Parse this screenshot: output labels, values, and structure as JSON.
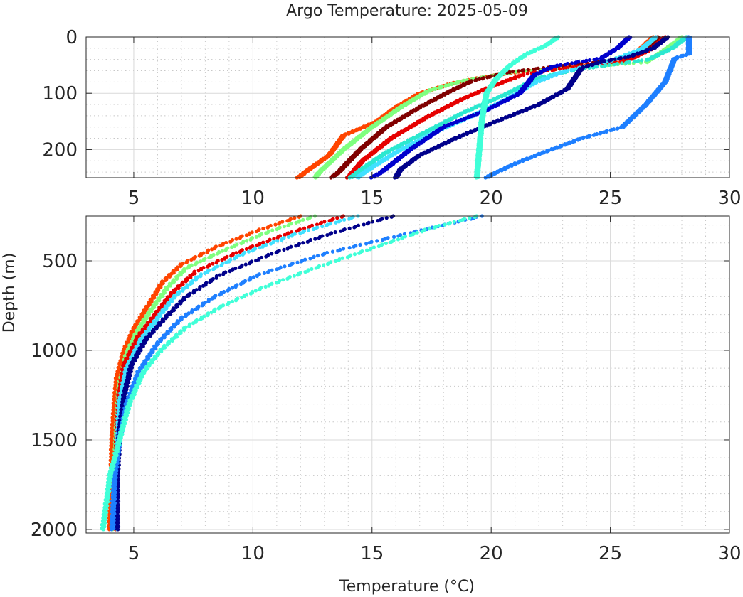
{
  "chart_data": {
    "type": "scatter",
    "title": "Argo Temperature: 2025-05-09",
    "xlabel": "Temperature (°C)",
    "ylabel": "Depth (m)",
    "grid": true,
    "y_reversed": true,
    "panels": [
      {
        "name": "upper",
        "xlim": [
          3,
          30
        ],
        "ylim": [
          0,
          250
        ],
        "xticks": [
          5,
          10,
          15,
          20,
          25,
          30
        ],
        "yticks": [
          0,
          100,
          200
        ],
        "series_points": [
          {
            "color": "#FF4500",
            "points": [
              [
                26.8,
                0
              ],
              [
                26.3,
                20
              ],
              [
                25.6,
                45
              ],
              [
                22.6,
                55
              ],
              [
                21.2,
                62
              ],
              [
                19.8,
                70
              ],
              [
                18.4,
                82
              ],
              [
                17.0,
                100
              ],
              [
                16.0,
                125
              ],
              [
                15.2,
                150
              ],
              [
                13.8,
                175
              ],
              [
                13.2,
                210
              ],
              [
                12.2,
                240
              ],
              [
                11.9,
                250
              ]
            ]
          },
          {
            "color": "#7FFF7F",
            "points": [
              [
                28.0,
                0
              ],
              [
                27.4,
                20
              ],
              [
                26.5,
                45
              ],
              [
                23.0,
                56
              ],
              [
                21.0,
                62
              ],
              [
                18.8,
                78
              ],
              [
                17.4,
                95
              ],
              [
                16.2,
                125
              ],
              [
                15.0,
                160
              ],
              [
                13.8,
                200
              ],
              [
                12.8,
                240
              ],
              [
                12.6,
                250
              ]
            ]
          },
          {
            "color": "#800000",
            "points": [
              [
                27.0,
                0
              ],
              [
                26.6,
                20
              ],
              [
                25.6,
                40
              ],
              [
                22.8,
                52
              ],
              [
                20.8,
                62
              ],
              [
                19.2,
                78
              ],
              [
                18.2,
                98
              ],
              [
                17.0,
                125
              ],
              [
                15.6,
                160
              ],
              [
                14.5,
                200
              ],
              [
                13.6,
                240
              ],
              [
                13.3,
                250
              ]
            ]
          },
          {
            "color": "#E60000",
            "points": [
              [
                27.3,
                0
              ],
              [
                26.8,
                20
              ],
              [
                25.8,
                40
              ],
              [
                23.0,
                56
              ],
              [
                21.4,
                66
              ],
              [
                20.0,
                88
              ],
              [
                18.8,
                110
              ],
              [
                17.4,
                140
              ],
              [
                15.8,
                180
              ],
              [
                14.6,
                220
              ],
              [
                14.0,
                250
              ]
            ]
          },
          {
            "color": "#2CE8D0",
            "points": [
              [
                28.2,
                0
              ],
              [
                27.6,
                20
              ],
              [
                26.6,
                40
              ],
              [
                23.6,
                58
              ],
              [
                22.0,
                72
              ],
              [
                20.6,
                102
              ],
              [
                18.8,
                135
              ],
              [
                17.2,
                170
              ],
              [
                15.6,
                205
              ],
              [
                14.4,
                240
              ],
              [
                14.1,
                250
              ]
            ]
          },
          {
            "color": "#40E0FF",
            "points": [
              [
                26.9,
                0
              ],
              [
                26.3,
                22
              ],
              [
                25.0,
                42
              ],
              [
                23.0,
                62
              ],
              [
                21.8,
                82
              ],
              [
                20.6,
                112
              ],
              [
                19.2,
                140
              ],
              [
                17.6,
                170
              ],
              [
                16.0,
                205
              ],
              [
                14.7,
                240
              ],
              [
                14.4,
                250
              ]
            ]
          },
          {
            "color": "#0000CD",
            "points": [
              [
                25.8,
                0
              ],
              [
                25.3,
                20
              ],
              [
                24.6,
                38
              ],
              [
                22.6,
                52
              ],
              [
                21.8,
                68
              ],
              [
                21.2,
                100
              ],
              [
                19.8,
                130
              ],
              [
                18.0,
                160
              ],
              [
                16.6,
                200
              ],
              [
                15.4,
                240
              ],
              [
                15.0,
                250
              ]
            ]
          },
          {
            "color": "#00008B",
            "points": [
              [
                27.4,
                0
              ],
              [
                26.8,
                20
              ],
              [
                25.8,
                35
              ],
              [
                24.6,
                44
              ],
              [
                23.8,
                55
              ],
              [
                23.2,
                92
              ],
              [
                22.0,
                120
              ],
              [
                20.2,
                150
              ],
              [
                18.5,
                180
              ],
              [
                17.0,
                210
              ],
              [
                16.2,
                235
              ],
              [
                16.0,
                250
              ]
            ]
          },
          {
            "color": "#1E7FFF",
            "points": [
              [
                28.3,
                0
              ],
              [
                28.3,
                30
              ],
              [
                27.7,
                38
              ],
              [
                27.3,
                80
              ],
              [
                26.5,
                120
              ],
              [
                25.5,
                160
              ],
              [
                23.8,
                180
              ],
              [
                22.2,
                205
              ],
              [
                21.0,
                225
              ],
              [
                20.0,
                245
              ],
              [
                19.8,
                250
              ]
            ]
          },
          {
            "color": "#40FFD8",
            "points": [
              [
                22.8,
                0
              ],
              [
                22.3,
                15
              ],
              [
                21.5,
                30
              ],
              [
                20.8,
                50
              ],
              [
                20.2,
                75
              ],
              [
                19.8,
                100
              ],
              [
                19.6,
                150
              ],
              [
                19.5,
                200
              ],
              [
                19.4,
                250
              ]
            ]
          }
        ]
      },
      {
        "name": "lower",
        "xlim": [
          3,
          30
        ],
        "ylim": [
          250,
          2020
        ],
        "xticks": [
          5,
          10,
          15,
          20,
          25,
          30
        ],
        "yticks": [
          500,
          1000,
          1500,
          2000
        ],
        "series_points": [
          {
            "color": "#FF4500",
            "points": [
              [
                12.0,
                250
              ],
              [
                10.2,
                330
              ],
              [
                8.5,
                420
              ],
              [
                7.0,
                520
              ],
              [
                6.2,
                620
              ],
              [
                5.6,
                750
              ],
              [
                5.0,
                880
              ],
              [
                4.6,
                1000
              ],
              [
                4.3,
                1150
              ],
              [
                4.2,
                1300
              ],
              [
                4.1,
                1500
              ],
              [
                4.05,
                1800
              ],
              [
                4.0,
                2000
              ]
            ]
          },
          {
            "color": "#7FFF7F",
            "points": [
              [
                12.6,
                250
              ],
              [
                10.6,
                340
              ],
              [
                8.8,
                440
              ],
              [
                7.2,
                540
              ],
              [
                6.4,
                650
              ],
              [
                5.8,
                760
              ],
              [
                5.2,
                880
              ],
              [
                4.7,
                1020
              ],
              [
                4.4,
                1200
              ],
              [
                4.3,
                1400
              ],
              [
                4.2,
                1700
              ],
              [
                4.15,
                2000
              ]
            ]
          },
          {
            "color": "#E60000",
            "points": [
              [
                13.8,
                250
              ],
              [
                11.4,
                350
              ],
              [
                9.4,
                450
              ],
              [
                7.6,
                560
              ],
              [
                6.6,
                680
              ],
              [
                5.9,
                800
              ],
              [
                5.2,
                920
              ],
              [
                4.6,
                1080
              ],
              [
                4.4,
                1250
              ],
              [
                4.3,
                1500
              ],
              [
                4.2,
                1800
              ],
              [
                4.2,
                2000
              ]
            ]
          },
          {
            "color": "#40E0FF",
            "points": [
              [
                14.4,
                250
              ],
              [
                11.8,
                350
              ],
              [
                9.6,
                460
              ],
              [
                7.8,
                580
              ],
              [
                6.7,
                700
              ],
              [
                6.0,
                820
              ],
              [
                5.3,
                940
              ],
              [
                4.7,
                1100
              ],
              [
                4.4,
                1300
              ],
              [
                4.3,
                1600
              ],
              [
                4.25,
                2000
              ]
            ]
          },
          {
            "color": "#00008B",
            "points": [
              [
                15.9,
                250
              ],
              [
                13.2,
                350
              ],
              [
                10.8,
                460
              ],
              [
                8.6,
                580
              ],
              [
                7.2,
                700
              ],
              [
                6.3,
                820
              ],
              [
                5.5,
                940
              ],
              [
                4.9,
                1080
              ],
              [
                4.6,
                1250
              ],
              [
                4.4,
                1450
              ],
              [
                4.3,
                1700
              ],
              [
                4.3,
                2000
              ]
            ]
          },
          {
            "color": "#1E7FFF",
            "points": [
              [
                19.6,
                250
              ],
              [
                16.4,
                350
              ],
              [
                13.0,
                460
              ],
              [
                10.2,
                580
              ],
              [
                8.4,
                700
              ],
              [
                7.0,
                820
              ],
              [
                6.0,
                960
              ],
              [
                5.2,
                1120
              ],
              [
                4.7,
                1300
              ],
              [
                4.4,
                1500
              ],
              [
                4.2,
                1700
              ],
              [
                4.1,
                2000
              ]
            ]
          },
          {
            "color": "#40FFD8",
            "points": [
              [
                19.4,
                250
              ],
              [
                17.4,
                320
              ],
              [
                15.0,
                430
              ],
              [
                12.6,
                540
              ],
              [
                10.4,
                650
              ],
              [
                8.6,
                760
              ],
              [
                7.2,
                870
              ],
              [
                6.2,
                990
              ],
              [
                5.4,
                1120
              ],
              [
                4.8,
                1300
              ],
              [
                4.4,
                1500
              ],
              [
                4.0,
                1700
              ],
              [
                3.8,
                1900
              ],
              [
                3.7,
                2000
              ]
            ]
          }
        ]
      }
    ]
  }
}
